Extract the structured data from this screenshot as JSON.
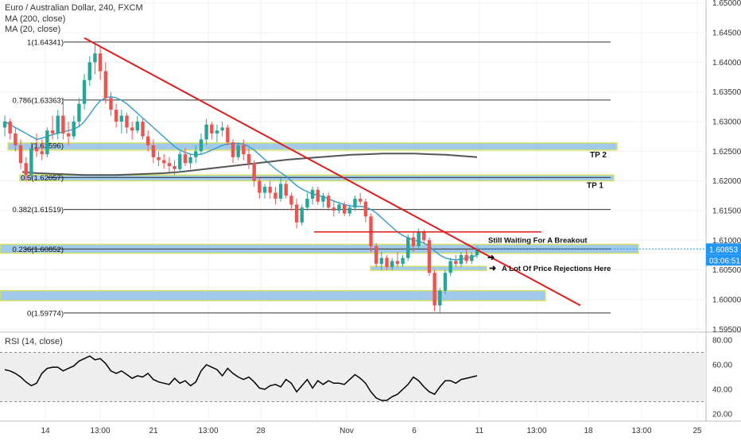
{
  "header": {
    "symbol_line": "Euro / Australian Dollar, 240, FXCM",
    "ma200_label": "MA (200, close)",
    "ma20_label": "MA (20, close)"
  },
  "rsi_label": "RSI (14, close)",
  "price_badges": {
    "last_price": "1.60853",
    "countdown": "03:06:51"
  },
  "colors": {
    "candle_up": "#26a69a",
    "candle_down": "#ef5350",
    "ma20": "#3b9fd1",
    "ma200": "#555555",
    "trendline": "#e01b1b",
    "zone_fill": "#8fbfe6",
    "zone_border": "#d7e26a",
    "price_badge": "#2196f3",
    "rsi_line": "#000000",
    "rsi_band": "#eeeeee",
    "fib_line": "#333333"
  },
  "chart_data": {
    "type": "candlestick",
    "ylim": [
      1.5945,
      1.6505
    ],
    "y_ticks": [
      "1.65000",
      "1.64500",
      "1.64000",
      "1.63500",
      "1.63000",
      "1.62500",
      "1.62000",
      "1.61500",
      "1.61000",
      "1.60500",
      "1.60000",
      "1.59500"
    ],
    "x_ticks": [
      "14",
      "13:00",
      "21",
      "13:00",
      "28",
      "13:00",
      "Nov",
      "6",
      "13:00",
      "11",
      "13:00",
      "18",
      "13:00",
      "25"
    ],
    "fib_levels": [
      {
        "label": "1(1.64341)",
        "value": 1.64341
      },
      {
        "label": "0.786(1.63363)",
        "value": 1.63363
      },
      {
        "label": "0.5(1.62057)",
        "value": 1.62057
      },
      {
        "label": "0.382(1.61519)",
        "value": 1.61519
      },
      {
        "label": "0.236(1.60852)",
        "value": 1.60852
      },
      {
        "label": "0(1.59774)",
        "value": 1.59774
      },
      {
        "label": "(1.62596)",
        "value": 1.62596
      }
    ],
    "zones": [
      {
        "label": "TP 2",
        "low": 1.6252,
        "high": 1.6264
      },
      {
        "label": "TP 1",
        "low": 1.62,
        "high": 1.621
      },
      {
        "label": "",
        "low": 1.6078,
        "high": 1.6093
      },
      {
        "label": "",
        "low": 1.6049,
        "high": 1.6056
      },
      {
        "label": "",
        "low": 1.5998,
        "high": 1.6015
      }
    ],
    "annotations": [
      "Still Waiting For A Breakout",
      "A Lot Of Price Rejections Here"
    ],
    "resistance_level": 1.6114,
    "last_price": 1.60853,
    "candles": [
      [
        1.629,
        1.631,
        1.6275,
        1.63
      ],
      [
        1.63,
        1.6305,
        1.627,
        1.628
      ],
      [
        1.628,
        1.629,
        1.625,
        1.626
      ],
      [
        1.626,
        1.627,
        1.622,
        1.623
      ],
      [
        1.623,
        1.624,
        1.62,
        1.621
      ],
      [
        1.621,
        1.6265,
        1.6205,
        1.6255
      ],
      [
        1.6255,
        1.628,
        1.624,
        1.625
      ],
      [
        1.625,
        1.627,
        1.6235,
        1.6245
      ],
      [
        1.6245,
        1.629,
        1.624,
        1.6285
      ],
      [
        1.6285,
        1.631,
        1.627,
        1.628
      ],
      [
        1.628,
        1.632,
        1.627,
        1.631
      ],
      [
        1.631,
        1.634,
        1.627,
        1.628
      ],
      [
        1.628,
        1.63,
        1.626,
        1.6275
      ],
      [
        1.6275,
        1.631,
        1.627,
        1.63
      ],
      [
        1.63,
        1.634,
        1.629,
        1.633
      ],
      [
        1.633,
        1.638,
        1.632,
        1.637
      ],
      [
        1.637,
        1.641,
        1.636,
        1.64
      ],
      [
        1.64,
        1.6435,
        1.638,
        1.6415
      ],
      [
        1.6415,
        1.6425,
        1.637,
        1.6385
      ],
      [
        1.6385,
        1.64,
        1.633,
        1.634
      ],
      [
        1.634,
        1.635,
        1.631,
        1.632
      ],
      [
        1.632,
        1.633,
        1.629,
        1.63
      ],
      [
        1.63,
        1.632,
        1.628,
        1.631
      ],
      [
        1.631,
        1.6315,
        1.628,
        1.629
      ],
      [
        1.629,
        1.63,
        1.627,
        1.6285
      ],
      [
        1.6285,
        1.631,
        1.628,
        1.63
      ],
      [
        1.63,
        1.6305,
        1.627,
        1.6275
      ],
      [
        1.6275,
        1.6285,
        1.625,
        1.626
      ],
      [
        1.626,
        1.627,
        1.623,
        1.624
      ],
      [
        1.624,
        1.625,
        1.6225,
        1.6235
      ],
      [
        1.6235,
        1.6245,
        1.622,
        1.623
      ],
      [
        1.623,
        1.624,
        1.6215,
        1.6225
      ],
      [
        1.6225,
        1.6235,
        1.621,
        1.622
      ],
      [
        1.622,
        1.625,
        1.6215,
        1.6245
      ],
      [
        1.6245,
        1.6255,
        1.6225,
        1.623
      ],
      [
        1.623,
        1.6245,
        1.622,
        1.624
      ],
      [
        1.624,
        1.626,
        1.623,
        1.625
      ],
      [
        1.625,
        1.628,
        1.6245,
        1.627
      ],
      [
        1.627,
        1.6305,
        1.626,
        1.6295
      ],
      [
        1.6295,
        1.63,
        1.627,
        1.628
      ],
      [
        1.628,
        1.6295,
        1.6265,
        1.6285
      ],
      [
        1.6285,
        1.63,
        1.6275,
        1.629
      ],
      [
        1.629,
        1.6295,
        1.626,
        1.6265
      ],
      [
        1.6265,
        1.627,
        1.623,
        1.624
      ],
      [
        1.624,
        1.6265,
        1.6235,
        1.626
      ],
      [
        1.626,
        1.627,
        1.6235,
        1.6245
      ],
      [
        1.6245,
        1.6255,
        1.622,
        1.623
      ],
      [
        1.623,
        1.6235,
        1.619,
        1.62
      ],
      [
        1.62,
        1.6205,
        1.617,
        1.618
      ],
      [
        1.618,
        1.6195,
        1.617,
        1.619
      ],
      [
        1.619,
        1.62,
        1.617,
        1.618
      ],
      [
        1.618,
        1.619,
        1.616,
        1.617
      ],
      [
        1.617,
        1.6205,
        1.6165,
        1.6195
      ],
      [
        1.6195,
        1.62,
        1.617,
        1.6175
      ],
      [
        1.6175,
        1.618,
        1.615,
        1.616
      ],
      [
        1.616,
        1.617,
        1.612,
        1.613
      ],
      [
        1.613,
        1.616,
        1.6125,
        1.6155
      ],
      [
        1.6155,
        1.618,
        1.615,
        1.617
      ],
      [
        1.617,
        1.619,
        1.616,
        1.6185
      ],
      [
        1.6185,
        1.619,
        1.616,
        1.6165
      ],
      [
        1.6165,
        1.618,
        1.6155,
        1.6175
      ],
      [
        1.6175,
        1.618,
        1.615,
        1.6155
      ],
      [
        1.6155,
        1.6165,
        1.614,
        1.615
      ],
      [
        1.615,
        1.6165,
        1.6145,
        1.616
      ],
      [
        1.616,
        1.6165,
        1.614,
        1.6145
      ],
      [
        1.6145,
        1.616,
        1.614,
        1.6155
      ],
      [
        1.6155,
        1.6175,
        1.615,
        1.617
      ],
      [
        1.617,
        1.618,
        1.616,
        1.6165
      ],
      [
        1.6165,
        1.617,
        1.613,
        1.614
      ],
      [
        1.614,
        1.6145,
        1.608,
        1.609
      ],
      [
        1.609,
        1.6095,
        1.6055,
        1.606
      ],
      [
        1.606,
        1.608,
        1.605,
        1.607
      ],
      [
        1.607,
        1.6075,
        1.605,
        1.6055
      ],
      [
        1.6055,
        1.607,
        1.605,
        1.6065
      ],
      [
        1.6065,
        1.608,
        1.6055,
        1.606
      ],
      [
        1.606,
        1.6075,
        1.6055,
        1.607
      ],
      [
        1.607,
        1.611,
        1.6065,
        1.6105
      ],
      [
        1.6105,
        1.6115,
        1.608,
        1.609
      ],
      [
        1.609,
        1.612,
        1.6085,
        1.6115
      ],
      [
        1.6115,
        1.6118,
        1.6095,
        1.61
      ],
      [
        1.61,
        1.6105,
        1.604,
        1.6045
      ],
      [
        1.6045,
        1.605,
        1.598,
        1.599
      ],
      [
        1.599,
        1.602,
        1.5978,
        1.6015
      ],
      [
        1.6015,
        1.605,
        1.601,
        1.6045
      ],
      [
        1.6045,
        1.607,
        1.604,
        1.6065
      ],
      [
        1.6065,
        1.6075,
        1.6055,
        1.606
      ],
      [
        1.606,
        1.608,
        1.6055,
        1.6075
      ],
      [
        1.6075,
        1.6085,
        1.606,
        1.6065
      ],
      [
        1.6065,
        1.608,
        1.606,
        1.6075
      ],
      [
        1.6075,
        1.609,
        1.607,
        1.60853
      ]
    ],
    "ma20": [
      1.63,
      1.6295,
      1.629,
      1.6285,
      1.628,
      1.6275,
      1.627,
      1.6272,
      1.6275,
      1.6278,
      1.628,
      1.6283,
      1.6285,
      1.6287,
      1.6292,
      1.63,
      1.6312,
      1.6325,
      1.6335,
      1.634,
      1.6342,
      1.634,
      1.6336,
      1.633,
      1.6322,
      1.6314,
      1.6306,
      1.6298,
      1.629,
      1.6282,
      1.6274,
      1.6266,
      1.6258,
      1.6252,
      1.6248,
      1.6245,
      1.6244,
      1.6245,
      1.6248,
      1.6252,
      1.6256,
      1.626,
      1.6262,
      1.6263,
      1.6263,
      1.6262,
      1.6258,
      1.6252,
      1.6244,
      1.6236,
      1.6228,
      1.622,
      1.6214,
      1.6208,
      1.62,
      1.6192,
      1.6186,
      1.6182,
      1.6178,
      1.6176,
      1.6173,
      1.617,
      1.6166,
      1.6163,
      1.616,
      1.6158,
      1.6157,
      1.6157,
      1.6156,
      1.6152,
      1.6146,
      1.6138,
      1.613,
      1.6122,
      1.6114,
      1.6108,
      1.6104,
      1.61,
      1.6098,
      1.6095,
      1.609,
      1.6082,
      1.6075,
      1.607,
      1.6068,
      1.6067,
      1.6068,
      1.607,
      1.6072,
      1.6074
    ],
    "ma200": [
      1.6215,
      1.6213,
      1.6212,
      1.6211,
      1.621,
      1.621,
      1.621,
      1.6211,
      1.6212,
      1.6213,
      1.6215,
      1.6218,
      1.6221,
      1.6224,
      1.6227,
      1.623,
      1.6233,
      1.6236,
      1.6238,
      1.624,
      1.6242,
      1.6244,
      1.6245,
      1.6246,
      1.6246,
      1.6246,
      1.6245,
      1.6244,
      1.6242,
      1.624
    ],
    "rsi": [
      56,
      55,
      53,
      50,
      46,
      43,
      45,
      53,
      57,
      58,
      58,
      55,
      57,
      59,
      63,
      65,
      67,
      64,
      65,
      61,
      55,
      53,
      55,
      52,
      49,
      51,
      50,
      53,
      48,
      46,
      45,
      44,
      49,
      45,
      47,
      43,
      46,
      55,
      60,
      58,
      56,
      51,
      57,
      53,
      50,
      48,
      50,
      46,
      41,
      40,
      43,
      44,
      42,
      48,
      45,
      38,
      43,
      48,
      41,
      47,
      44,
      47,
      45,
      45,
      44,
      48,
      52,
      49,
      45,
      38,
      33,
      31,
      31,
      34,
      36,
      40,
      44,
      50,
      47,
      42,
      38,
      36,
      42,
      47,
      47,
      45,
      48,
      49,
      50,
      51
    ],
    "rsi_ticks": [
      "80.00",
      "60.00",
      "40.00",
      "20.00"
    ]
  }
}
